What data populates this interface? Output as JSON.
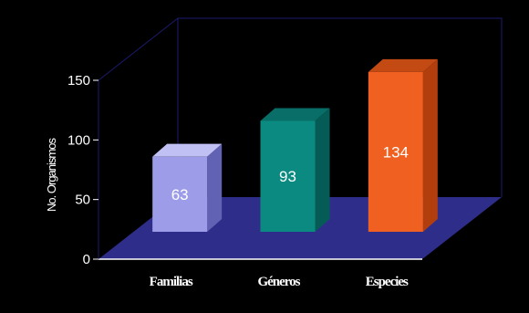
{
  "chart_data": {
    "type": "bar",
    "categories": [
      "Familias",
      "Géneros",
      "Especies"
    ],
    "values": [
      63,
      93,
      134
    ],
    "ylabel": "No. Organismos",
    "ylim": [
      0,
      150
    ],
    "yticks": [
      0,
      50,
      100,
      150
    ],
    "grid": false,
    "legend": "none",
    "colors": {
      "background": "#000000",
      "floor": "#2e2e8a",
      "wall_lines": "#1a1a6e",
      "bars": [
        {
          "front": "#9c9ce8",
          "side": "#6262b4",
          "top": "#c0c0f4"
        },
        {
          "front": "#0a8a80",
          "side": "#055c56",
          "top": "#096e68"
        },
        {
          "front": "#f06020",
          "side": "#b23e0e",
          "top": "#c44a14"
        }
      ]
    }
  }
}
